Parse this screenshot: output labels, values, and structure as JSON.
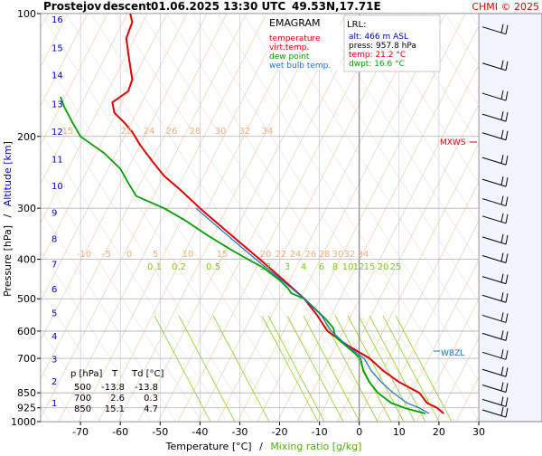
{
  "header": {
    "station": "Prostejov",
    "mode": "descent",
    "datetime": "01.06.2025 13:30 UTC",
    "coords": "49.53N,17.71E",
    "copyright": "CHMI © 2025"
  },
  "legend": {
    "title": "EMAGRAM",
    "items": [
      {
        "label": "temperature",
        "color": "#e00000"
      },
      {
        "label": "virt.temp.",
        "color": "#e00000"
      },
      {
        "label": "dew point",
        "color": "#00a000"
      },
      {
        "label": "wet bulb temp.",
        "color": "#1e6fd0"
      }
    ]
  },
  "lrl": {
    "title": "LRL:",
    "alt": "alt: 466 m ASL",
    "press": "press: 957.8 hPa",
    "temp": "temp: 21.2 °C",
    "dwpt": "dwpt: 16.6 °C"
  },
  "markers": {
    "mxws": "MXWS",
    "wbzl": "WBZL"
  },
  "table": {
    "headers": [
      "p [hPa]",
      "T",
      "Td [°C]"
    ],
    "rows": [
      [
        "500",
        "-13.8",
        "-13.8"
      ],
      [
        "700",
        "2.6",
        "0.3"
      ],
      [
        "850",
        "15.1",
        "4.7"
      ]
    ]
  },
  "axes": {
    "xlabel_temp": "Temperature [°C]",
    "xlabel_sep": "/",
    "xlabel_mix": "Mixing ratio [g/kg]",
    "ylabel_press": "Pressure [hPa]",
    "ylabel_sep": "/",
    "ylabel_alt": "Altitude [km]"
  },
  "colors": {
    "temperature": "#e00000",
    "dewpoint": "#00a000",
    "wetbulb": "#1e6fd0",
    "mixing_ratio": "#7ccf00",
    "dry_adiabat": "#f0b080",
    "isotherm": "#c0c0e0",
    "isobar": "#b0b0b0",
    "altitude": "#0000c0",
    "header_red": "#e00000",
    "navy_label": "#000080"
  },
  "chart_data": {
    "type": "line",
    "x_range": [
      -80,
      30
    ],
    "y_range_hpa": [
      1000,
      100
    ],
    "y_scale": "log",
    "grid": true,
    "pressure_ticks": [
      100,
      200,
      300,
      400,
      500,
      600,
      700,
      850,
      925,
      1000
    ],
    "temp_ticks": [
      -70,
      -60,
      -50,
      -40,
      -30,
      -20,
      -10,
      0,
      10,
      20,
      30
    ],
    "altitude_km": [
      {
        "km": 1,
        "p": 898
      },
      {
        "km": 2,
        "p": 795
      },
      {
        "km": 3,
        "p": 701
      },
      {
        "km": 4,
        "p": 616
      },
      {
        "km": 5,
        "p": 540
      },
      {
        "km": 6,
        "p": 472
      },
      {
        "km": 7,
        "p": 410
      },
      {
        "km": 8,
        "p": 356
      },
      {
        "km": 9,
        "p": 307
      },
      {
        "km": 10,
        "p": 264
      },
      {
        "km": 11,
        "p": 227
      },
      {
        "km": 12,
        "p": 194
      },
      {
        "km": 13,
        "p": 166
      },
      {
        "km": 14,
        "p": 141
      },
      {
        "km": 15,
        "p": 121
      },
      {
        "km": 16,
        "p": 103
      }
    ],
    "mixing_ratio_labels": [
      "0.1",
      "0.2",
      "0.5",
      "1",
      "2",
      "3",
      "4",
      "6",
      "8",
      "10",
      "12",
      "15",
      "20",
      "25"
    ],
    "mixing_ratio_values": [
      0.1,
      0.2,
      0.5,
      1,
      2,
      3,
      4,
      6,
      8,
      10,
      12,
      15,
      20,
      25
    ],
    "adiabat_labels_upper": [
      "15",
      "22",
      "24",
      "26",
      "28",
      "30",
      "32",
      "34"
    ],
    "adiabat_labels_lower": [
      "-10",
      "-5",
      "0",
      "5",
      "10",
      "15",
      "20",
      "22",
      "24",
      "26",
      "28",
      "30",
      "32",
      "34"
    ],
    "series": [
      {
        "name": "temperature",
        "points": [
          {
            "p": 955,
            "t": 21.2
          },
          {
            "p": 925,
            "t": 19.5
          },
          {
            "p": 900,
            "t": 17.0
          },
          {
            "p": 850,
            "t": 15.1
          },
          {
            "p": 800,
            "t": 10.0
          },
          {
            "p": 750,
            "t": 6.0
          },
          {
            "p": 700,
            "t": 2.6
          },
          {
            "p": 650,
            "t": -3.0
          },
          {
            "p": 600,
            "t": -8.0
          },
          {
            "p": 550,
            "t": -10.5
          },
          {
            "p": 500,
            "t": -13.8
          },
          {
            "p": 450,
            "t": -19.0
          },
          {
            "p": 400,
            "t": -25.0
          },
          {
            "p": 350,
            "t": -32.0
          },
          {
            "p": 300,
            "t": -40.0
          },
          {
            "p": 270,
            "t": -45.0
          },
          {
            "p": 250,
            "t": -49.0
          },
          {
            "p": 230,
            "t": -52.0
          },
          {
            "p": 210,
            "t": -55.0
          },
          {
            "p": 195,
            "t": -57.0
          },
          {
            "p": 185,
            "t": -59.0
          },
          {
            "p": 175,
            "t": -61.5
          },
          {
            "p": 165,
            "t": -62.0
          },
          {
            "p": 155,
            "t": -58.0
          },
          {
            "p": 145,
            "t": -57.0
          },
          {
            "p": 135,
            "t": -57.5
          },
          {
            "p": 125,
            "t": -58.0
          },
          {
            "p": 115,
            "t": -58.5
          },
          {
            "p": 105,
            "t": -57.0
          },
          {
            "p": 100,
            "t": -57.5
          }
        ]
      },
      {
        "name": "dew point",
        "points": [
          {
            "p": 955,
            "t": 16.6
          },
          {
            "p": 930,
            "t": 12.0
          },
          {
            "p": 900,
            "t": 8.0
          },
          {
            "p": 850,
            "t": 4.7
          },
          {
            "p": 800,
            "t": 2.5
          },
          {
            "p": 750,
            "t": 1.0
          },
          {
            "p": 700,
            "t": 0.3
          },
          {
            "p": 650,
            "t": -3.5
          },
          {
            "p": 620,
            "t": -6.0
          },
          {
            "p": 590,
            "t": -6.5
          },
          {
            "p": 560,
            "t": -8.5
          },
          {
            "p": 530,
            "t": -11.0
          },
          {
            "p": 500,
            "t": -13.8
          },
          {
            "p": 485,
            "t": -17.0
          },
          {
            "p": 470,
            "t": -18.0
          },
          {
            "p": 450,
            "t": -20.0
          },
          {
            "p": 420,
            "t": -24.0
          },
          {
            "p": 400,
            "t": -28.0
          },
          {
            "p": 380,
            "t": -32.0
          },
          {
            "p": 350,
            "t": -38.0
          },
          {
            "p": 320,
            "t": -44.0
          },
          {
            "p": 300,
            "t": -49.0
          },
          {
            "p": 280,
            "t": -56.0
          },
          {
            "p": 260,
            "t": -58.0
          },
          {
            "p": 240,
            "t": -60.0
          },
          {
            "p": 220,
            "t": -64.0
          },
          {
            "p": 200,
            "t": -70.0
          },
          {
            "p": 185,
            "t": -72.0
          },
          {
            "p": 170,
            "t": -74.0
          },
          {
            "p": 160,
            "t": -75.0
          }
        ]
      },
      {
        "name": "wet bulb temp.",
        "points": [
          {
            "p": 955,
            "t": 17.5
          },
          {
            "p": 925,
            "t": 15.0
          },
          {
            "p": 900,
            "t": 12.0
          },
          {
            "p": 850,
            "t": 8.5
          },
          {
            "p": 800,
            "t": 5.5
          },
          {
            "p": 750,
            "t": 3.0
          },
          {
            "p": 700,
            "t": 1.2
          },
          {
            "p": 650,
            "t": -3.2
          },
          {
            "p": 600,
            "t": -7.0
          },
          {
            "p": 550,
            "t": -9.5
          },
          {
            "p": 500,
            "t": -13.8
          },
          {
            "p": 450,
            "t": -19.5
          },
          {
            "p": 400,
            "t": -26.0
          },
          {
            "p": 350,
            "t": -33.0
          },
          {
            "p": 300,
            "t": -41.0
          }
        ]
      }
    ],
    "wind_barbs": [
      {
        "p": 110
      },
      {
        "p": 135
      },
      {
        "p": 160
      },
      {
        "p": 180
      },
      {
        "p": 200
      },
      {
        "p": 230
      },
      {
        "p": 260
      },
      {
        "p": 290
      },
      {
        "p": 320
      },
      {
        "p": 360
      },
      {
        "p": 400
      },
      {
        "p": 450
      },
      {
        "p": 500
      },
      {
        "p": 560
      },
      {
        "p": 620
      },
      {
        "p": 690
      },
      {
        "p": 760
      },
      {
        "p": 830
      },
      {
        "p": 900
      },
      {
        "p": 955
      }
    ]
  }
}
